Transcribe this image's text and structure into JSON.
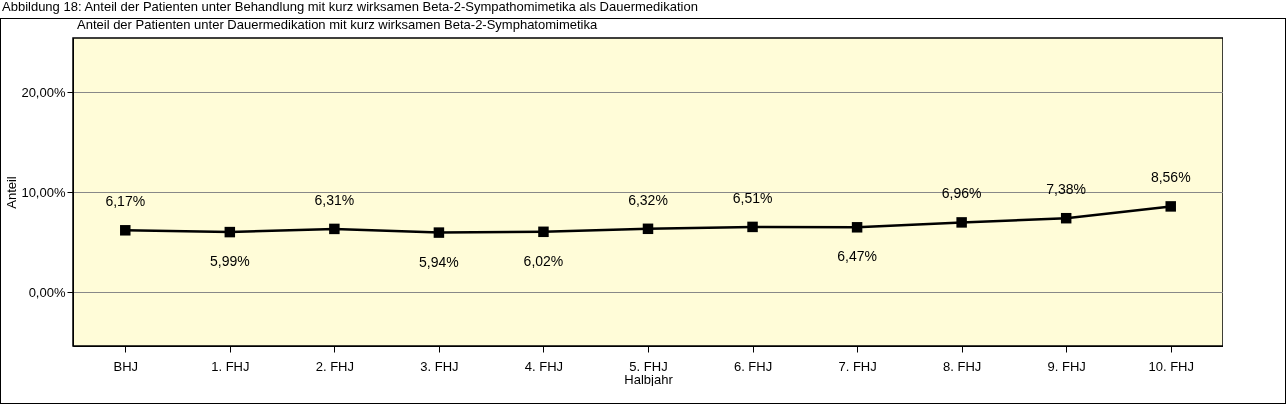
{
  "chart_data": {
    "type": "line",
    "title": "Abbildung 18: Anteil der Patienten unter Behandlung mit kurz wirksamen Beta-2-Sympathomimetika als Dauermedikation",
    "subtitle": "Anteil der Patienten unter Dauermedikation mit kurz wirksamen Beta-2-Symphatomimetika",
    "xlabel": "Halbjahr",
    "ylabel": "Anteil",
    "categories": [
      "BHJ",
      "1. FHJ",
      "2. FHJ",
      "3. FHJ",
      "4. FHJ",
      "5. FHJ",
      "6. FHJ",
      "7. FHJ",
      "8. FHJ",
      "9. FHJ",
      "10. FHJ"
    ],
    "series": [
      {
        "color": "#000000",
        "values": [
          6.17,
          5.99,
          6.31,
          5.94,
          6.02,
          6.32,
          6.51,
          6.47,
          6.96,
          7.38,
          8.56
        ],
        "value_labels": [
          "6,17%",
          "5,99%",
          "6,31%",
          "5,94%",
          "6,02%",
          "6,32%",
          "6,51%",
          "6,47%",
          "6,96%",
          "7,38%",
          "8,56%"
        ]
      }
    ],
    "ylim": [
      -5.4,
      25.4
    ],
    "yticks": [
      {
        "value": 0,
        "label": "0,00%"
      },
      {
        "value": 10,
        "label": "10,00%"
      },
      {
        "value": 20,
        "label": "20,00%"
      }
    ],
    "grid": "y",
    "marker": "square",
    "line_style": "solid",
    "legend": false
  }
}
